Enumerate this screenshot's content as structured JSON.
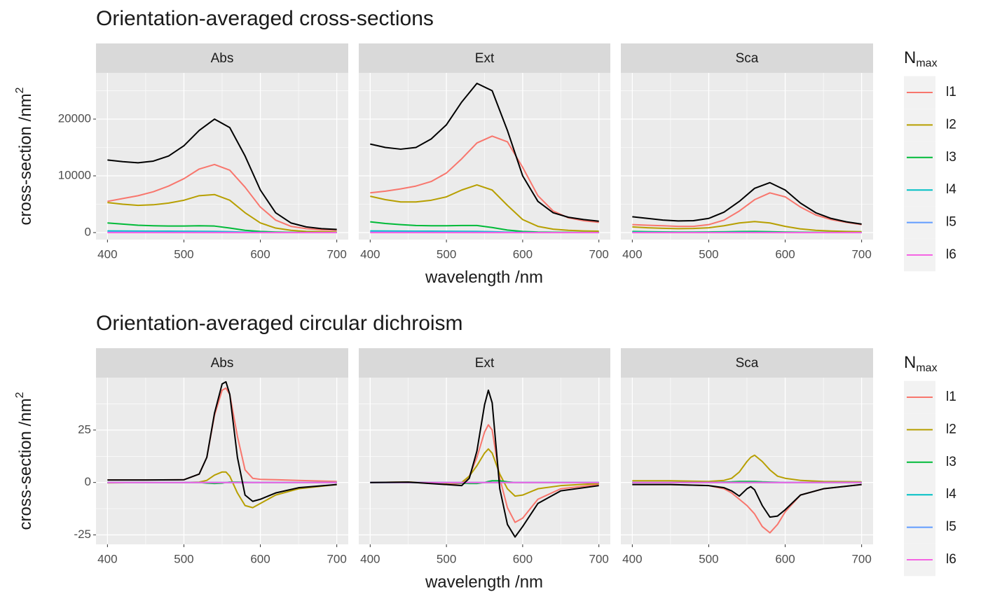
{
  "chart_data": [
    {
      "type": "line",
      "title": "Orientation-averaged cross-sections",
      "x_label": "wavelength /nm",
      "y_label": "cross-section /nm",
      "y_label_sup": "2",
      "legend_title": "N",
      "legend_title_sub": "max",
      "legend": "right",
      "grid": true,
      "panels": [
        "Abs",
        "Ext",
        "Sca"
      ],
      "x": [
        400,
        420,
        440,
        460,
        480,
        500,
        520,
        540,
        560,
        580,
        600,
        620,
        640,
        660,
        680,
        700
      ],
      "xlim": [
        385,
        715
      ],
      "xticks": [
        400,
        500,
        600,
        700
      ],
      "x_minor_ticks": [
        450,
        550,
        650
      ],
      "ylim": [
        -1235,
        28150
      ],
      "yticks": [
        0,
        10000,
        20000
      ],
      "y_minor_ticks": [
        5000,
        15000,
        25000
      ],
      "series": [
        {
          "name": "l1",
          "color": "#F8766D",
          "values": [
            [
              5500,
              6000,
              6500,
              7200,
              8200,
              9500,
              11200,
              12000,
              11000,
              8000,
              4500,
              2200,
              1100,
              700,
              500,
              400
            ],
            [
              7000,
              7300,
              7700,
              8200,
              9000,
              10500,
              13000,
              15800,
              17000,
              16000,
              11500,
              6500,
              3800,
              2600,
              2100,
              1800
            ],
            [
              1400,
              1300,
              1200,
              1100,
              1100,
              1400,
              2200,
              3800,
              5800,
              7000,
              6300,
              4500,
              3100,
              2300,
              1800,
              1400
            ]
          ]
        },
        {
          "name": "l2",
          "color": "#B79F00",
          "values": [
            [
              5300,
              5000,
              4800,
              4900,
              5200,
              5700,
              6500,
              6700,
              5700,
              3500,
              1700,
              800,
              400,
              200,
              150,
              100
            ],
            [
              6400,
              5800,
              5400,
              5400,
              5700,
              6300,
              7500,
              8400,
              7500,
              4800,
              2300,
              1100,
              600,
              400,
              300,
              250
            ],
            [
              1000,
              850,
              750,
              700,
              720,
              850,
              1200,
              1700,
              1950,
              1700,
              1100,
              650,
              400,
              280,
              200,
              150
            ]
          ]
        },
        {
          "name": "l3",
          "color": "#00BA38",
          "values": [
            [
              1700,
              1500,
              1300,
              1200,
              1150,
              1150,
              1200,
              1150,
              800,
              400,
              200,
              100,
              50,
              30,
              20,
              10
            ],
            [
              1900,
              1600,
              1400,
              1250,
              1200,
              1200,
              1250,
              1250,
              900,
              450,
              200,
              100,
              60,
              40,
              30,
              20
            ],
            [
              200,
              150,
              120,
              100,
              100,
              110,
              140,
              180,
              200,
              150,
              100,
              60,
              40,
              30,
              20,
              10
            ]
          ]
        },
        {
          "name": "l4",
          "color": "#00BFC4",
          "values": [
            [
              300,
              280,
              260,
              250,
              240,
              230,
              220,
              200,
              150,
              80,
              40,
              20,
              10,
              5,
              5,
              0
            ],
            [
              300,
              280,
              260,
              250,
              240,
              230,
              220,
              200,
              150,
              80,
              40,
              20,
              10,
              5,
              5,
              0
            ],
            [
              100,
              80,
              60,
              50,
              50,
              50,
              60,
              70,
              60,
              40,
              20,
              10,
              5,
              0,
              0,
              0
            ]
          ]
        },
        {
          "name": "l5",
          "color": "#619CFF",
          "values": [
            [
              100,
              90,
              80,
              70,
              60,
              60,
              60,
              50,
              40,
              20,
              10,
              5,
              0,
              0,
              0,
              0
            ],
            [
              100,
              90,
              80,
              70,
              60,
              60,
              60,
              50,
              40,
              20,
              10,
              5,
              0,
              0,
              0,
              0
            ],
            [
              0,
              0,
              0,
              0,
              0,
              0,
              0,
              0,
              0,
              0,
              0,
              0,
              0,
              0,
              0,
              0
            ]
          ]
        },
        {
          "name": "l6",
          "color": "#F564E3",
          "values": [
            [
              0,
              0,
              0,
              0,
              0,
              0,
              0,
              0,
              0,
              0,
              0,
              0,
              0,
              0,
              0,
              0
            ],
            [
              0,
              0,
              0,
              0,
              0,
              0,
              0,
              0,
              0,
              0,
              0,
              0,
              0,
              0,
              0,
              0
            ],
            [
              0,
              0,
              0,
              0,
              0,
              0,
              0,
              0,
              0,
              0,
              0,
              0,
              0,
              0,
              0,
              0
            ]
          ]
        },
        {
          "color": "#000000",
          "values": [
            [
              12800,
              12500,
              12300,
              12600,
              13500,
              15300,
              18000,
              20000,
              18500,
              13500,
              7500,
              3500,
              1700,
              1000,
              700,
              550
            ],
            [
              15600,
              15000,
              14700,
              15000,
              16500,
              19000,
              23000,
              26300,
              25000,
              18000,
              10000,
              5500,
              3500,
              2700,
              2300,
              2000
            ],
            [
              2800,
              2500,
              2200,
              2050,
              2100,
              2500,
              3600,
              5500,
              7800,
              8800,
              7500,
              5200,
              3500,
              2500,
              1900,
              1500
            ]
          ]
        }
      ]
    },
    {
      "type": "line",
      "title": "Orientation-averaged circular dichroism",
      "x_label": "wavelength /nm",
      "y_label": "cross-section /nm",
      "y_label_sup": "2",
      "legend_title": "N",
      "legend_title_sub": "max",
      "legend": "right",
      "grid": true,
      "panels": [
        "Abs",
        "Ext",
        "Sca"
      ],
      "x": [
        400,
        450,
        500,
        520,
        530,
        540,
        550,
        555,
        560,
        570,
        580,
        590,
        600,
        620,
        650,
        700
      ],
      "xlim": [
        385,
        715
      ],
      "xticks": [
        400,
        500,
        600,
        700
      ],
      "x_minor_ticks": [
        450,
        550,
        650
      ],
      "ylim": [
        -29.5,
        50
      ],
      "yticks": [
        -25,
        0,
        25
      ],
      "y_minor_ticks": [
        -12.5,
        12.5,
        37.5
      ],
      "series": [
        {
          "name": "l1",
          "color": "#F8766D",
          "values": [
            [
              1.2,
              1.2,
              1.3,
              4,
              12,
              32,
              44,
              45,
              42,
              22,
              6,
              2,
              1.5,
              1.3,
              1,
              0.5
            ],
            [
              0,
              0.2,
              -0.8,
              -0.5,
              3,
              12,
              24,
              27.5,
              25,
              2,
              -12,
              -19,
              -17,
              -8,
              -3,
              -1
            ],
            [
              -1,
              -1,
              -1.5,
              -3,
              -5,
              -8,
              -11,
              -13,
              -15,
              -21,
              -24,
              -20,
              -14,
              -6,
              -3,
              -1
            ]
          ]
        },
        {
          "name": "l2",
          "color": "#B79F00",
          "values": [
            [
              -0.2,
              0,
              0,
              0.2,
              1,
              3.5,
              5,
              5,
              3,
              -5,
              -11,
              -12,
              -10,
              -6,
              -3,
              -1
            ],
            [
              0,
              0.2,
              -0.3,
              0,
              3,
              8,
              14,
              16,
              14,
              4,
              -3,
              -6.5,
              -6,
              -3,
              -1.5,
              -0.5
            ],
            [
              0.8,
              0.8,
              0.5,
              1,
              2,
              5,
              10,
              12,
              13,
              10,
              6,
              3,
              2,
              1,
              0.5,
              0.3
            ]
          ]
        },
        {
          "name": "l3",
          "color": "#00BA38",
          "values": [
            [
              0,
              0,
              0,
              0,
              -0.3,
              -0.5,
              -0.3,
              0,
              0.2,
              0.2,
              0.1,
              0,
              0,
              0,
              0,
              0
            ],
            [
              0,
              0,
              0,
              -0.3,
              -0.5,
              -0.5,
              0,
              0.5,
              0.8,
              0.8,
              0.3,
              0,
              0,
              0,
              0,
              0
            ],
            [
              0,
              0,
              0,
              0.2,
              0.3,
              0.5,
              0.5,
              0.5,
              0.5,
              0.3,
              0.2,
              0.1,
              0,
              0,
              0,
              0
            ]
          ]
        },
        {
          "name": "l4",
          "color": "#00BFC4",
          "values": [
            [
              0,
              0,
              0,
              0,
              0,
              0,
              0,
              0,
              0,
              0,
              0,
              0,
              0,
              0,
              0,
              0
            ],
            [
              0,
              0,
              0,
              0,
              0,
              0,
              0,
              0,
              0,
              0,
              0,
              0,
              0,
              0,
              0,
              0
            ],
            [
              0,
              0,
              0,
              0,
              0,
              0,
              0,
              0,
              0,
              0,
              0,
              0,
              0,
              0,
              0,
              0
            ]
          ]
        },
        {
          "name": "l5",
          "color": "#619CFF",
          "values": [
            [
              0,
              0,
              0,
              0,
              0,
              0,
              0,
              0,
              0,
              0,
              0,
              0,
              0,
              0,
              0,
              0
            ],
            [
              0,
              0,
              0,
              0,
              0,
              0,
              0,
              0,
              0,
              0,
              0,
              0,
              0,
              0,
              0,
              0
            ],
            [
              0,
              0,
              0,
              0,
              0,
              0,
              0,
              0,
              0,
              0,
              0,
              0,
              0,
              0,
              0,
              0
            ]
          ]
        },
        {
          "name": "l6",
          "color": "#F564E3",
          "values": [
            [
              0,
              0,
              0,
              0,
              0,
              0,
              0,
              0,
              0,
              0,
              0,
              0,
              0,
              0,
              0,
              0
            ],
            [
              0,
              0,
              0,
              0,
              0,
              0,
              0,
              0,
              0,
              0,
              0,
              0,
              0,
              0,
              0,
              0
            ],
            [
              0,
              0,
              0,
              0,
              0,
              0,
              0,
              0,
              0,
              0,
              0,
              0,
              0,
              0,
              0,
              0
            ]
          ]
        },
        {
          "color": "#000000",
          "values": [
            [
              1.2,
              1.2,
              1.3,
              4,
              12,
              33,
              47,
              48,
              42,
              12,
              -6,
              -9,
              -8,
              -5,
              -2.5,
              -1
            ],
            [
              0,
              0.2,
              -1,
              -1.5,
              2,
              15,
              37,
              44,
              38,
              -3,
              -20,
              -26,
              -21,
              -10,
              -4,
              -1.5
            ],
            [
              -1,
              -1,
              -1.5,
              -2.5,
              -4,
              -6.5,
              -3,
              -2,
              -3.5,
              -11,
              -16.5,
              -16,
              -13,
              -6,
              -3,
              -1
            ]
          ]
        }
      ]
    }
  ]
}
